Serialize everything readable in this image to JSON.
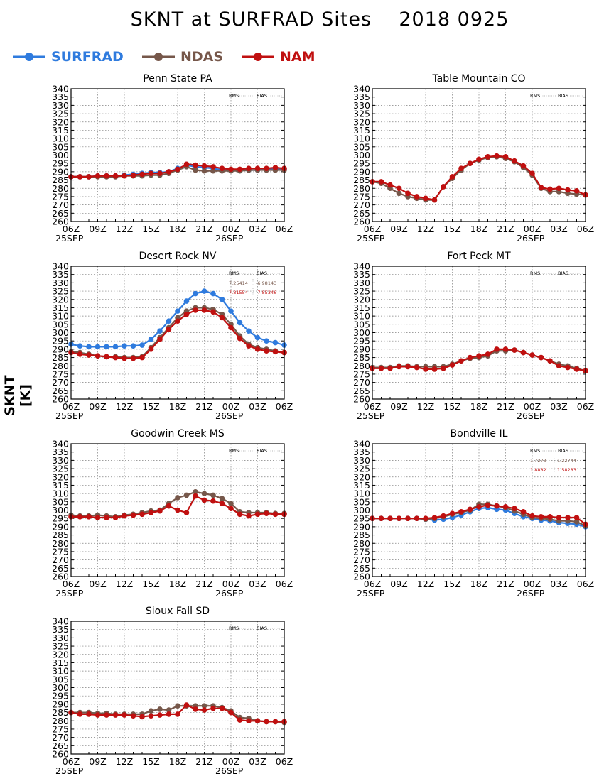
{
  "header": {
    "title": "SKNT at SURFRAD Sites    2018 0925",
    "yaxis_title": "SKNT [K]"
  },
  "legend": [
    {
      "name": "SURFRAD",
      "color": "#2f7bde"
    },
    {
      "name": "NDAS",
      "color": "#76574a"
    },
    {
      "name": "NAM",
      "color": "#c01010"
    }
  ],
  "colors": {
    "SURFRAD": "#2f7bde",
    "NDAS": "#76574a",
    "NAM": "#c01010",
    "frame": "#000000",
    "grid": "#7f7f7f"
  },
  "chart_data": [
    {
      "type": "line",
      "title": "Penn State PA",
      "categories": [
        "06Z",
        "07Z",
        "08Z",
        "09Z",
        "10Z",
        "11Z",
        "12Z",
        "13Z",
        "14Z",
        "15Z",
        "16Z",
        "17Z",
        "18Z",
        "19Z",
        "20Z",
        "21Z",
        "22Z",
        "23Z",
        "00Z",
        "01Z",
        "02Z",
        "03Z",
        "04Z",
        "05Z",
        "06Z"
      ],
      "x_tick_labels": [
        "06Z",
        "09Z",
        "12Z",
        "15Z",
        "18Z",
        "21Z",
        "00Z",
        "03Z",
        "06Z"
      ],
      "date_labels": [
        "25SEP",
        "26SEP"
      ],
      "ylim": [
        260,
        340
      ],
      "yticks_step": 5,
      "grid": true,
      "stats_header": {
        "rms": "RMS",
        "bias": "BIAS"
      },
      "stats": [],
      "series": [
        {
          "name": "SURFRAD",
          "values": [
            287,
            287,
            287,
            287.5,
            287.5,
            287.5,
            288,
            288.5,
            289,
            289.5,
            289.5,
            290,
            292,
            294,
            293,
            292.5,
            292,
            291,
            291,
            291,
            291,
            291,
            291.5,
            292,
            291.5
          ]
        },
        {
          "name": "NDAS",
          "values": [
            287,
            287,
            287,
            287,
            287,
            287,
            287.5,
            287.5,
            287.5,
            288,
            288,
            289,
            291,
            293,
            291,
            290.5,
            290.5,
            290.5,
            290.5,
            290.5,
            291,
            291,
            291,
            291,
            291
          ]
        },
        {
          "name": "NAM",
          "values": [
            287,
            287,
            287,
            287.5,
            287.5,
            287.5,
            287.5,
            288,
            288.5,
            289,
            289,
            290,
            291.5,
            294.5,
            294,
            293.5,
            293,
            292,
            291.5,
            291.5,
            292,
            292,
            292,
            292.5,
            292
          ]
        }
      ]
    },
    {
      "type": "line",
      "title": "Table Mountain CO",
      "categories": [
        "06Z",
        "07Z",
        "08Z",
        "09Z",
        "10Z",
        "11Z",
        "12Z",
        "13Z",
        "14Z",
        "15Z",
        "16Z",
        "17Z",
        "18Z",
        "19Z",
        "20Z",
        "21Z",
        "22Z",
        "23Z",
        "00Z",
        "01Z",
        "02Z",
        "03Z",
        "04Z",
        "05Z",
        "06Z"
      ],
      "x_tick_labels": [
        "06Z",
        "09Z",
        "12Z",
        "15Z",
        "18Z",
        "21Z",
        "00Z",
        "03Z",
        "06Z"
      ],
      "date_labels": [
        "25SEP",
        "26SEP"
      ],
      "ylim": [
        260,
        340
      ],
      "yticks_step": 5,
      "grid": true,
      "stats_header": {
        "rms": "RMS",
        "bias": "BIAS"
      },
      "stats": [],
      "series": [
        {
          "name": "NDAS",
          "values": [
            284,
            283,
            280,
            277,
            275,
            274,
            273,
            273,
            281,
            286,
            291,
            295,
            297,
            298.5,
            299,
            298,
            296,
            292.5,
            288,
            280,
            278,
            278,
            277,
            276.5,
            276
          ]
        },
        {
          "name": "NAM",
          "values": [
            284,
            284,
            282,
            280,
            277,
            275,
            274,
            273,
            281,
            287,
            292,
            295,
            297.5,
            299,
            299.5,
            299,
            296.5,
            293.5,
            289,
            280.5,
            279.5,
            280,
            279,
            278.5,
            276
          ]
        }
      ]
    },
    {
      "type": "line",
      "title": "Desert Rock NV",
      "categories": [
        "06Z",
        "07Z",
        "08Z",
        "09Z",
        "10Z",
        "11Z",
        "12Z",
        "13Z",
        "14Z",
        "15Z",
        "16Z",
        "17Z",
        "18Z",
        "19Z",
        "20Z",
        "21Z",
        "22Z",
        "23Z",
        "00Z",
        "01Z",
        "02Z",
        "03Z",
        "04Z",
        "05Z",
        "06Z"
      ],
      "x_tick_labels": [
        "06Z",
        "09Z",
        "12Z",
        "15Z",
        "18Z",
        "21Z",
        "00Z",
        "03Z",
        "06Z"
      ],
      "date_labels": [
        "25SEP",
        "26SEP"
      ],
      "ylim": [
        260,
        340
      ],
      "yticks_step": 5,
      "grid": true,
      "stats_header": {
        "rms": "RMS",
        "bias": "BIAS"
      },
      "stats": [
        {
          "series": "NDAS",
          "rms": "7.25414",
          "bias": "-6.98143"
        },
        {
          "series": "NAM",
          "rms": "7.81554",
          "bias": "-7.85346"
        }
      ],
      "series": [
        {
          "name": "SURFRAD",
          "values": [
            293,
            292,
            291.5,
            291.5,
            291.5,
            291.5,
            292,
            292,
            292.5,
            296,
            301,
            307,
            313,
            319,
            323.5,
            325,
            323.5,
            320,
            313,
            306,
            301,
            297,
            295,
            294,
            292.5
          ]
        },
        {
          "name": "NDAS",
          "values": [
            288.5,
            288,
            287,
            286,
            285.5,
            285.5,
            285,
            285,
            285.5,
            291,
            297,
            303,
            309,
            313,
            315,
            315,
            314,
            311,
            305,
            298,
            293,
            291,
            290,
            289,
            288
          ]
        },
        {
          "name": "NAM",
          "values": [
            288,
            287,
            286.5,
            286,
            285.5,
            285,
            284.5,
            284.5,
            285,
            290,
            296,
            302,
            307,
            311,
            313.5,
            313.5,
            312.5,
            309,
            303,
            296.5,
            292,
            290,
            289,
            288.5,
            288
          ]
        }
      ]
    },
    {
      "type": "line",
      "title": "Fort Peck MT",
      "categories": [
        "06Z",
        "07Z",
        "08Z",
        "09Z",
        "10Z",
        "11Z",
        "12Z",
        "13Z",
        "14Z",
        "15Z",
        "16Z",
        "17Z",
        "18Z",
        "19Z",
        "20Z",
        "21Z",
        "22Z",
        "23Z",
        "00Z",
        "01Z",
        "02Z",
        "03Z",
        "04Z",
        "05Z",
        "06Z"
      ],
      "x_tick_labels": [
        "06Z",
        "09Z",
        "12Z",
        "15Z",
        "18Z",
        "21Z",
        "00Z",
        "03Z",
        "06Z"
      ],
      "date_labels": [
        "25SEP",
        "26SEP"
      ],
      "ylim": [
        260,
        340
      ],
      "yticks_step": 5,
      "grid": true,
      "stats_header": {
        "rms": "RMS",
        "bias": "BIAS"
      },
      "stats": [],
      "series": [
        {
          "name": "NDAS",
          "values": [
            279,
            279,
            279,
            280,
            280,
            279.5,
            279.5,
            279.5,
            279.5,
            281,
            283,
            284.5,
            285,
            286,
            289,
            289,
            289.5,
            288,
            286.5,
            285,
            283,
            281,
            280,
            278.5,
            277
          ]
        },
        {
          "name": "NAM",
          "values": [
            278.5,
            278.5,
            278.5,
            279.5,
            279.5,
            279,
            278,
            278,
            278.5,
            280.5,
            283,
            285,
            286,
            287,
            290,
            290,
            289.5,
            288,
            286.5,
            285,
            283,
            280,
            279,
            278,
            277
          ]
        }
      ]
    },
    {
      "type": "line",
      "title": "Goodwin Creek MS",
      "categories": [
        "06Z",
        "07Z",
        "08Z",
        "09Z",
        "10Z",
        "11Z",
        "12Z",
        "13Z",
        "14Z",
        "15Z",
        "16Z",
        "17Z",
        "18Z",
        "19Z",
        "20Z",
        "21Z",
        "22Z",
        "23Z",
        "00Z",
        "01Z",
        "02Z",
        "03Z",
        "04Z",
        "05Z",
        "06Z"
      ],
      "x_tick_labels": [
        "06Z",
        "09Z",
        "12Z",
        "15Z",
        "18Z",
        "21Z",
        "00Z",
        "03Z",
        "06Z"
      ],
      "date_labels": [
        "25SEP",
        "26SEP"
      ],
      "ylim": [
        260,
        340
      ],
      "yticks_step": 5,
      "grid": true,
      "stats_header": {
        "rms": "RMS",
        "bias": "BIAS"
      },
      "stats": [],
      "series": [
        {
          "name": "NDAS",
          "values": [
            297,
            296.5,
            296.5,
            297,
            296.5,
            296,
            297,
            297.5,
            298.5,
            299.5,
            300,
            304,
            307.5,
            309,
            311,
            310,
            309,
            307,
            304,
            299,
            298.5,
            298.5,
            298.5,
            298,
            298
          ]
        },
        {
          "name": "NAM",
          "values": [
            296,
            296,
            296,
            295.5,
            295.5,
            295.5,
            296.5,
            297,
            297.5,
            298.5,
            299.5,
            302.5,
            300,
            298.5,
            308.5,
            306,
            305.5,
            304,
            301,
            297.5,
            296.5,
            297.5,
            298,
            297.5,
            297.5
          ]
        }
      ]
    },
    {
      "type": "line",
      "title": "Bondville IL",
      "categories": [
        "06Z",
        "07Z",
        "08Z",
        "09Z",
        "10Z",
        "11Z",
        "12Z",
        "13Z",
        "14Z",
        "15Z",
        "16Z",
        "17Z",
        "18Z",
        "19Z",
        "20Z",
        "21Z",
        "22Z",
        "23Z",
        "00Z",
        "01Z",
        "02Z",
        "03Z",
        "04Z",
        "05Z",
        "06Z"
      ],
      "x_tick_labels": [
        "06Z",
        "09Z",
        "12Z",
        "15Z",
        "18Z",
        "21Z",
        "00Z",
        "03Z",
        "06Z"
      ],
      "date_labels": [
        "25SEP",
        "26SEP"
      ],
      "ylim": [
        260,
        340
      ],
      "yticks_step": 5,
      "grid": true,
      "stats_header": {
        "rms": "RMS",
        "bias": "BIAS"
      },
      "stats": [
        {
          "series": "NDAS",
          "rms": "1.7273",
          "bias": "1.22744"
        },
        {
          "series": "NAM",
          "rms": "1.8882",
          "bias": "1.58283"
        }
      ],
      "series": [
        {
          "name": "SURFRAD",
          "values": [
            295,
            295,
            295,
            295,
            295,
            295,
            294.5,
            294,
            294.5,
            295.5,
            297,
            299,
            301,
            301.5,
            300.5,
            300,
            298,
            296,
            295,
            294,
            293.5,
            292.5,
            292,
            291.5,
            290
          ]
        },
        {
          "name": "NDAS",
          "values": [
            295,
            295,
            295,
            295,
            295,
            295,
            294.5,
            295,
            296,
            297.5,
            298.5,
            300,
            303.5,
            303.5,
            302.5,
            301.5,
            299.5,
            297.5,
            295.5,
            295,
            294.5,
            293.5,
            293.5,
            293,
            290.5
          ]
        },
        {
          "name": "NAM",
          "values": [
            295,
            295,
            295,
            295,
            295,
            295,
            295,
            295.5,
            296.5,
            298,
            299,
            300.5,
            302,
            303,
            302.5,
            302,
            301,
            299,
            296.5,
            296,
            296,
            295.5,
            295.5,
            295.5,
            291.5
          ]
        }
      ]
    },
    {
      "type": "line",
      "title": "Sioux Fall SD",
      "categories": [
        "06Z",
        "07Z",
        "08Z",
        "09Z",
        "10Z",
        "11Z",
        "12Z",
        "13Z",
        "14Z",
        "15Z",
        "16Z",
        "17Z",
        "18Z",
        "19Z",
        "20Z",
        "21Z",
        "22Z",
        "23Z",
        "00Z",
        "01Z",
        "02Z",
        "03Z",
        "04Z",
        "05Z",
        "06Z"
      ],
      "x_tick_labels": [
        "06Z",
        "09Z",
        "12Z",
        "15Z",
        "18Z",
        "21Z",
        "00Z",
        "03Z",
        "06Z"
      ],
      "date_labels": [
        "25SEP",
        "26SEP"
      ],
      "ylim": [
        260,
        340
      ],
      "yticks_step": 5,
      "grid": true,
      "stats_header": {
        "rms": "RMS",
        "bias": "BIAS"
      },
      "stats": [],
      "series": [
        {
          "name": "NDAS",
          "values": [
            285,
            285,
            285,
            284.5,
            284.5,
            284,
            284,
            284,
            284,
            286,
            287,
            286.5,
            289,
            289,
            289,
            289,
            289,
            288,
            286,
            282,
            281.5,
            280,
            279.5,
            279.5,
            279
          ]
        },
        {
          "name": "NAM",
          "values": [
            285,
            284,
            284,
            283.5,
            283.5,
            283.5,
            283.5,
            283,
            282.5,
            283,
            283.5,
            284,
            284,
            289.5,
            287,
            286.5,
            287.5,
            287.5,
            285,
            280.5,
            280,
            280,
            279.5,
            279.5,
            279.5
          ]
        }
      ]
    }
  ]
}
